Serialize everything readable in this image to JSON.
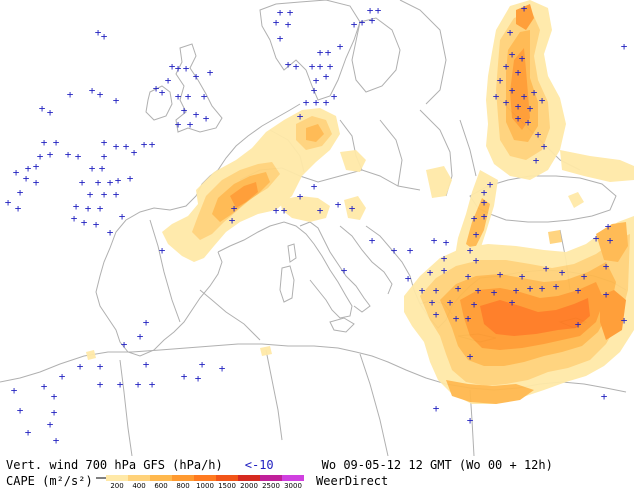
{
  "legend": {
    "product_label": "Vert. wind 700 hPa GFS (hPa/h)",
    "threshold_label": "<-10",
    "valid_time": "Wo 09-05-12 12 GMT (Wo 00 + 12h)",
    "cape_label": "CAPE (m²/s²)",
    "scale_ticks": [
      "200",
      "400",
      "600",
      "800",
      "1000",
      "1500",
      "2000",
      "2500",
      "3000"
    ],
    "scale_colors": [
      "#ffe9a8",
      "#ffd27a",
      "#ffb84d",
      "#ff9a30",
      "#ff7a20",
      "#f25518",
      "#d62a20",
      "#c0209a",
      "#d040e0"
    ],
    "source": "WeerDirect"
  },
  "map": {
    "coast_color": "#b0b0b0",
    "marker_color": "#2020c0",
    "marker_symbol": "+"
  }
}
